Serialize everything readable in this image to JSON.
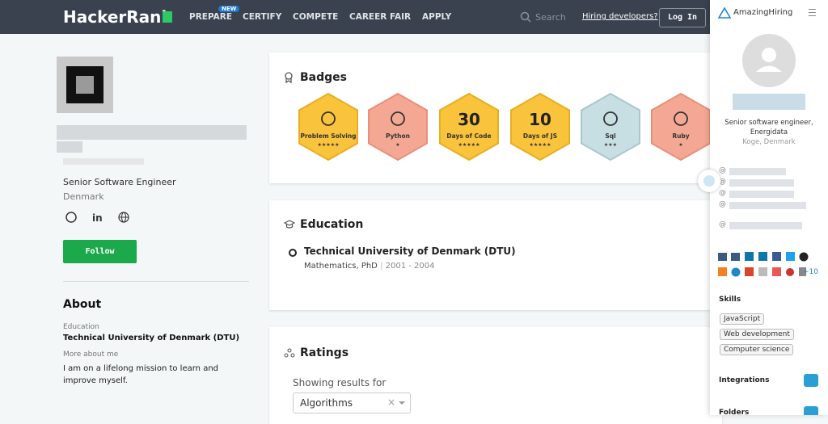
{
  "nav": {
    "logo": "HackerRank",
    "new_badge": "NEW",
    "items": [
      "PREPARE",
      "CERTIFY",
      "COMPETE",
      "CAREER FAIR",
      "APPLY"
    ],
    "search": "Search",
    "hiring": "Hiring developers?",
    "login": "Log In"
  },
  "profile": {
    "title": "Senior Software Engineer",
    "location": "Denmark",
    "follow": "Follow",
    "about_heading": "About",
    "education_label": "Education",
    "education_value": "Technical University of Denmark (DTU)",
    "more_label": "More about me",
    "more_value": "I am on a lifelong mission to learn and improve myself."
  },
  "badges": {
    "heading": "Badges",
    "items": [
      {
        "name": "Problem Solving",
        "stars": "★★★★★"
      },
      {
        "name": "Python",
        "stars": "★"
      },
      {
        "number": "30",
        "name": "Days of Code",
        "stars": "★★★★★"
      },
      {
        "number": "10",
        "name": "Days of JS",
        "stars": "★★★★★"
      },
      {
        "name": "Sql",
        "stars": "★★★"
      },
      {
        "name": "Ruby",
        "stars": "★"
      }
    ]
  },
  "education": {
    "heading": "Education",
    "school": "Technical University of Denmark (DTU)",
    "degree": "Mathematics, PhD",
    "separator": "|",
    "years": "2001 - 2004"
  },
  "ratings": {
    "heading": "Ratings",
    "showing": "Showing results for",
    "select": "Algorithms",
    "clear": "×"
  },
  "sidebar": {
    "brand": "AmazingHiring",
    "title": "Senior software engineer, Energidata",
    "location": "Koge, Denmark",
    "contact_symbol": "@",
    "more_links": "+10",
    "skills_heading": "Skills",
    "skills": [
      "JavaScript",
      "Web development",
      "Computer science"
    ],
    "integrations": "Integrations",
    "folders": "Folders"
  }
}
